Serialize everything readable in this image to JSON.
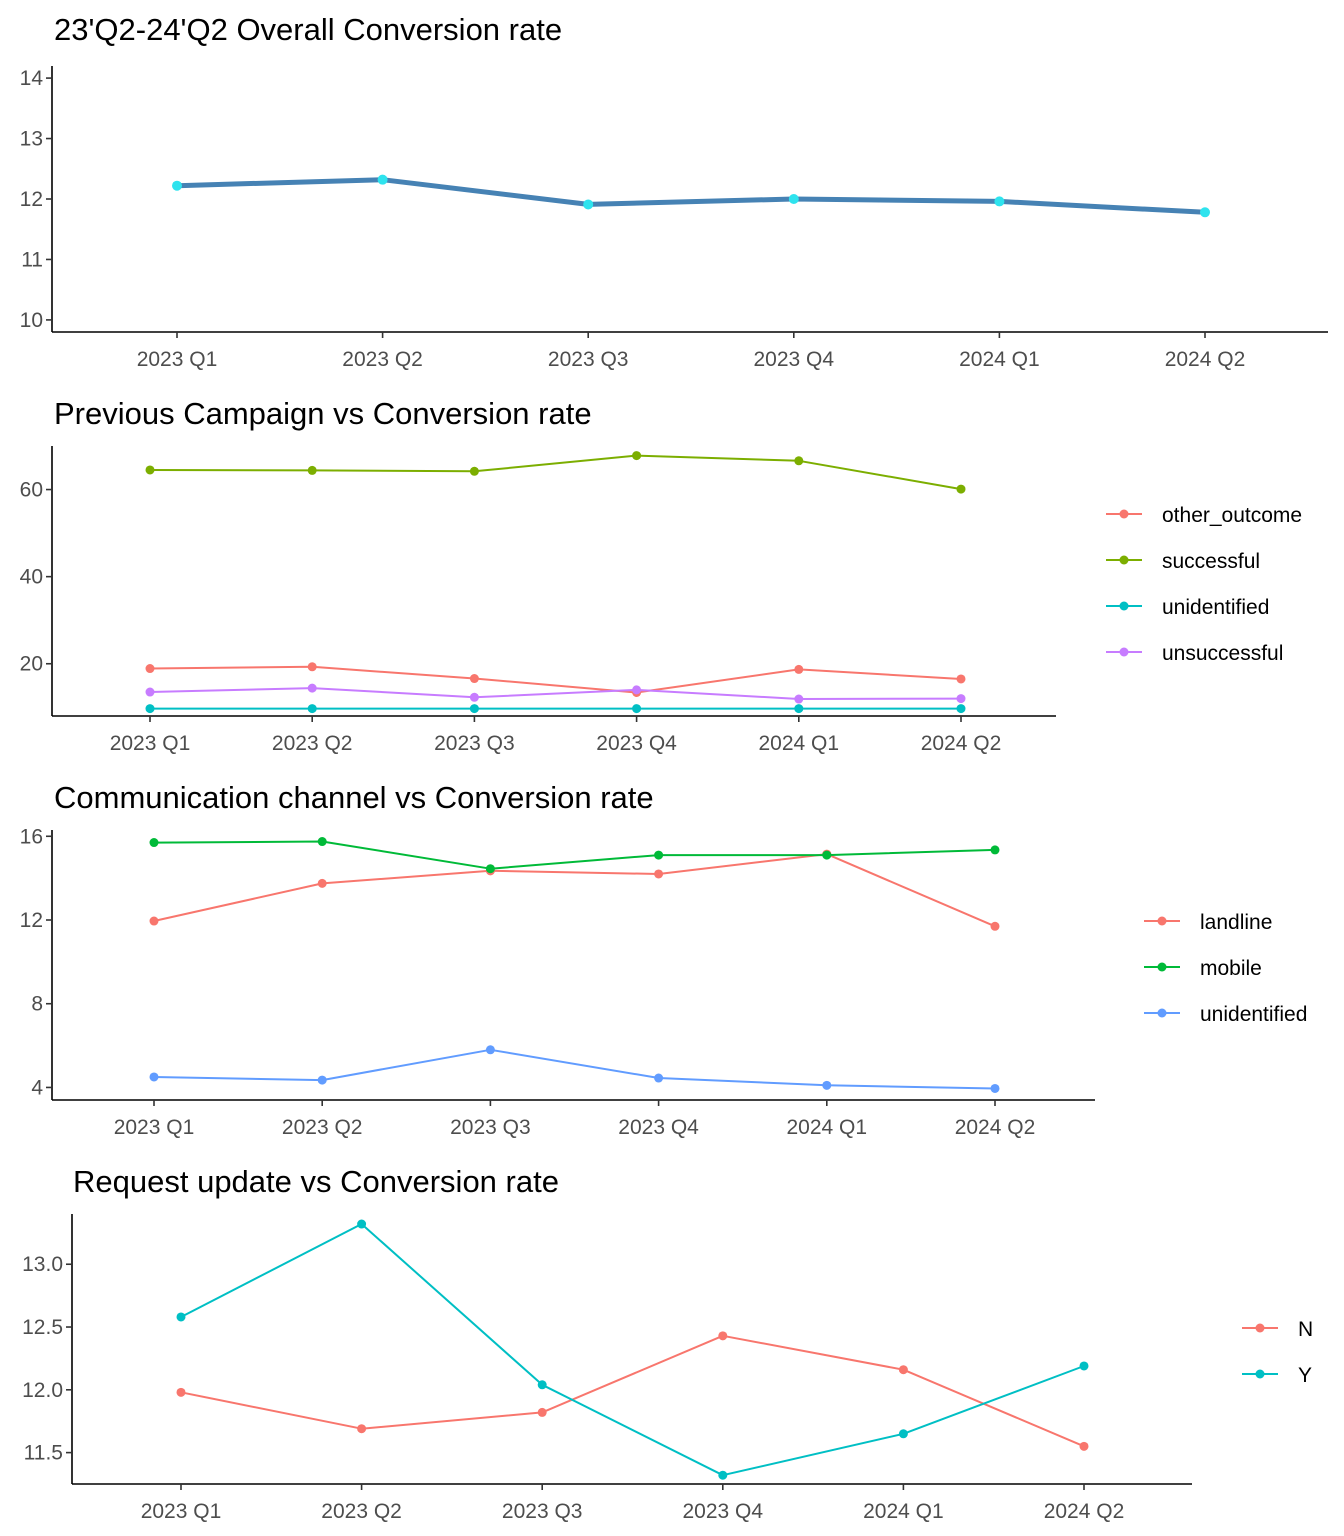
{
  "chart_data": [
    {
      "type": "line",
      "title": "23'Q2-24'Q2 Overall Conversion rate",
      "xlabel": "",
      "ylabel": "",
      "categories": [
        "2023 Q1",
        "2023 Q2",
        "2023 Q3",
        "2023 Q4",
        "2024 Q1",
        "2024 Q2"
      ],
      "ylim": [
        9.8,
        14.2
      ],
      "yticks": [
        10,
        11,
        12,
        13,
        14
      ],
      "legend": "none",
      "grid": false,
      "series": [
        {
          "values": [
            12.22,
            12.32,
            11.91,
            12.0,
            11.96,
            11.78
          ],
          "color": "#4682b4",
          "point_color": "#2ee3ee"
        }
      ]
    },
    {
      "type": "line",
      "title": "Previous Campaign vs Conversion rate",
      "xlabel": "",
      "ylabel": "",
      "categories": [
        "2023 Q1",
        "2023 Q2",
        "2023 Q3",
        "2023 Q4",
        "2024 Q1",
        "2024 Q2"
      ],
      "ylim": [
        8,
        70
      ],
      "yticks": [
        20,
        40,
        60
      ],
      "legend": "right",
      "grid": false,
      "series": [
        {
          "name": "other_outcome",
          "values": [
            18.9,
            19.3,
            16.6,
            13.4,
            18.7,
            16.5
          ],
          "color": "#f8766d"
        },
        {
          "name": "successful",
          "values": [
            64.5,
            64.4,
            64.2,
            67.8,
            66.6,
            60.1
          ],
          "color": "#7cae00"
        },
        {
          "name": "unidentified",
          "values": [
            9.7,
            9.7,
            9.7,
            9.7,
            9.7,
            9.7
          ],
          "color": "#00bfc4"
        },
        {
          "name": "unsuccessful",
          "values": [
            13.5,
            14.4,
            12.3,
            14.0,
            11.9,
            12.0
          ],
          "color": "#c77cff"
        }
      ]
    },
    {
      "type": "line",
      "title": "Communication channel vs Conversion rate",
      "xlabel": "",
      "ylabel": "",
      "categories": [
        "2023 Q1",
        "2023 Q2",
        "2023 Q3",
        "2023 Q4",
        "2024 Q1",
        "2024 Q2"
      ],
      "ylim": [
        3.4,
        16.3
      ],
      "yticks": [
        4,
        8,
        12,
        16
      ],
      "legend": "right",
      "grid": false,
      "series": [
        {
          "name": "landline",
          "values": [
            11.95,
            13.75,
            14.35,
            14.2,
            15.15,
            11.7
          ],
          "color": "#f8766d"
        },
        {
          "name": "mobile",
          "values": [
            15.7,
            15.75,
            14.45,
            15.1,
            15.1,
            15.35
          ],
          "color": "#00ba38"
        },
        {
          "name": "unidentified",
          "values": [
            4.5,
            4.35,
            5.8,
            4.45,
            4.1,
            3.95
          ],
          "color": "#619cff"
        }
      ]
    },
    {
      "type": "line",
      "title": "Request update vs Conversion rate",
      "xlabel": "",
      "ylabel": "",
      "categories": [
        "2023 Q1",
        "2023 Q2",
        "2023 Q3",
        "2023 Q4",
        "2024 Q1",
        "2024 Q2"
      ],
      "ylim": [
        11.25,
        13.4
      ],
      "yticks": [
        11.5,
        12.0,
        12.5,
        13.0
      ],
      "ytick_labels": [
        "11.5",
        "12.0",
        "12.5",
        "13.0"
      ],
      "legend": "right",
      "grid": false,
      "series": [
        {
          "name": "N",
          "values": [
            11.98,
            11.69,
            11.82,
            12.43,
            12.16,
            11.55
          ],
          "color": "#f8766d"
        },
        {
          "name": "Y",
          "values": [
            12.58,
            13.32,
            12.04,
            11.32,
            11.65,
            12.19
          ],
          "color": "#00bfc4"
        }
      ]
    }
  ]
}
